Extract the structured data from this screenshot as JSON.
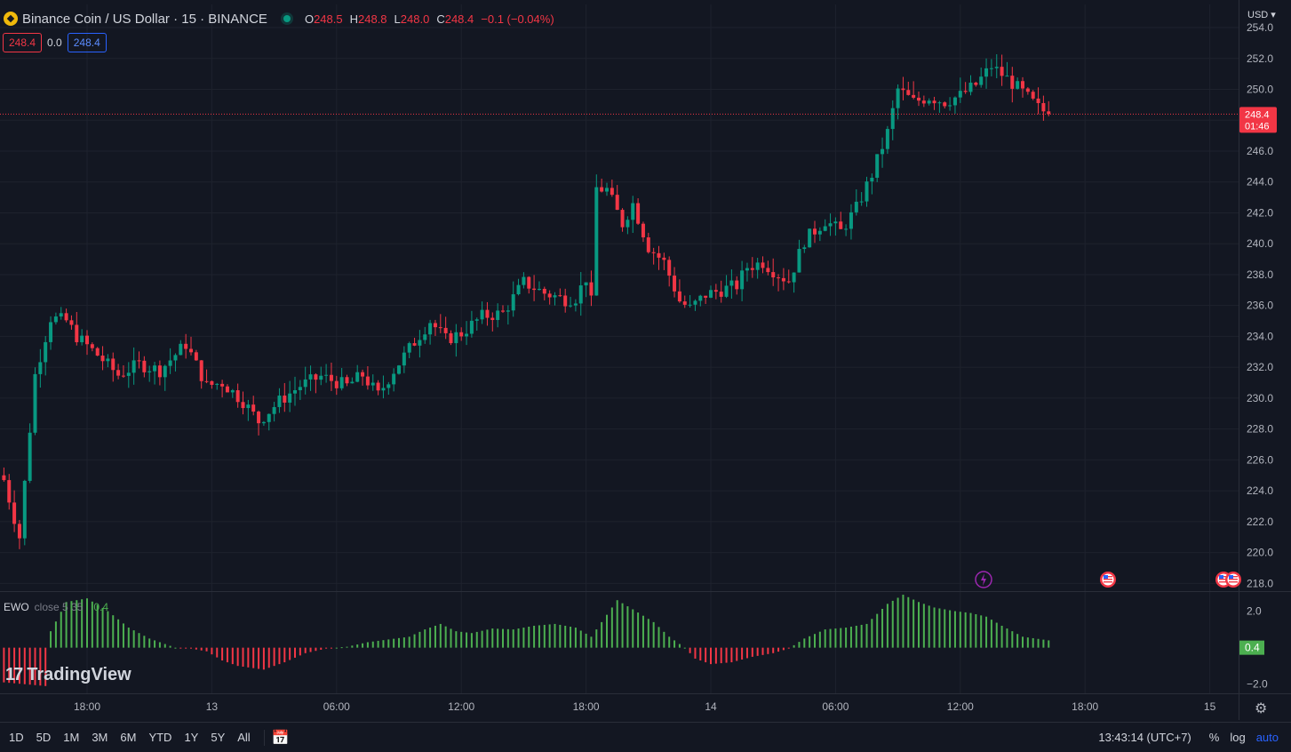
{
  "header": {
    "symbol_title": "Binance Coin / US Dollar · 15 · BINANCE",
    "ohlc": [
      {
        "k": "O",
        "v": "248.5"
      },
      {
        "k": "H",
        "v": "248.8"
      },
      {
        "k": "L",
        "v": "248.0"
      },
      {
        "k": "C",
        "v": "248.4"
      }
    ],
    "change": "−0.1 (−0.04%)",
    "bid_price": "248.4",
    "spread": "0.0",
    "ask_price": "248.4"
  },
  "currency_label": "USD",
  "chart_data": [
    {
      "type": "candlestick",
      "title": "Binance Coin / US Dollar · 15 · BINANCE",
      "ylim": [
        217.5,
        255.5
      ],
      "y_ticks": [
        254,
        252,
        250,
        248,
        246,
        244,
        242,
        240,
        238,
        236,
        234,
        232,
        230,
        228,
        226,
        224,
        222,
        220,
        218
      ],
      "y_tick_labels": [
        "254.0",
        "252.0",
        "250.0",
        "248.0",
        "246.0",
        "244.0",
        "242.0",
        "240.0",
        "238.0",
        "236.0",
        "234.0",
        "232.0",
        "230.0",
        "228.0",
        "226.0",
        "224.0",
        "222.0",
        "220.0",
        "218.0"
      ],
      "x_ticks": [
        "18:00",
        "13",
        "06:00",
        "12:00",
        "18:00",
        "14",
        "06:00",
        "12:00",
        "18:00",
        "15"
      ],
      "x_tick_index": [
        16,
        40,
        64,
        88,
        112,
        136,
        160,
        184,
        208,
        232
      ],
      "last_price": 248.4,
      "last_price_label": "248.4",
      "countdown_label": "01:46",
      "anchor_closes": [
        [
          0,
          224.7
        ],
        [
          3,
          221.0
        ],
        [
          6,
          231.5
        ],
        [
          9,
          235.2
        ],
        [
          12,
          235.0
        ],
        [
          14,
          234.0
        ],
        [
          18,
          232.8
        ],
        [
          22,
          231.5
        ],
        [
          26,
          232.2
        ],
        [
          30,
          231.8
        ],
        [
          35,
          233.5
        ],
        [
          39,
          230.8
        ],
        [
          42,
          231.0
        ],
        [
          46,
          229.8
        ],
        [
          49,
          228.5
        ],
        [
          53,
          229.8
        ],
        [
          57,
          230.8
        ],
        [
          61,
          231.4
        ],
        [
          66,
          230.8
        ],
        [
          69,
          231.5
        ],
        [
          72,
          230.2
        ],
        [
          75,
          231.8
        ],
        [
          78,
          233.2
        ],
        [
          82,
          235.0
        ],
        [
          85,
          233.8
        ],
        [
          88,
          234.2
        ],
        [
          92,
          235.3
        ],
        [
          96,
          235.5
        ],
        [
          100,
          237.5
        ],
        [
          104,
          236.8
        ],
        [
          108,
          236.4
        ],
        [
          110,
          236.5
        ],
        [
          112,
          237.8
        ],
        [
          113,
          236.2
        ],
        [
          114,
          243.6
        ],
        [
          116,
          243.5
        ],
        [
          119,
          241.3
        ],
        [
          121,
          242.6
        ],
        [
          124,
          239.8
        ],
        [
          127,
          238.8
        ],
        [
          130,
          236.3
        ],
        [
          132,
          235.8
        ],
        [
          135,
          236.7
        ],
        [
          138,
          237.0
        ],
        [
          141,
          237.3
        ],
        [
          143,
          238.5
        ],
        [
          146,
          238.8
        ],
        [
          149,
          238.0
        ],
        [
          151,
          237.6
        ],
        [
          154,
          240.2
        ],
        [
          158,
          241.5
        ],
        [
          161,
          240.8
        ],
        [
          164,
          242.3
        ],
        [
          167,
          244.5
        ],
        [
          170,
          247.2
        ],
        [
          172,
          250.0
        ],
        [
          175,
          249.2
        ],
        [
          178,
          249.5
        ],
        [
          181,
          249.2
        ],
        [
          184,
          249.6
        ],
        [
          187,
          250.3
        ],
        [
          190,
          251.5
        ],
        [
          193,
          250.7
        ],
        [
          196,
          249.8
        ],
        [
          199,
          248.8
        ],
        [
          201,
          248.4
        ]
      ]
    },
    {
      "type": "bar",
      "title": "EWO",
      "args": "close 5 35",
      "current_value_label": "0.4",
      "ylim": [
        -2.5,
        3.0
      ],
      "y_ticks": [
        2.0,
        0.0,
        -2.0
      ],
      "y_tick_labels": [
        "2.0",
        "",
        "−2.0"
      ],
      "anchor_values": [
        [
          0,
          -1.9
        ],
        [
          8,
          -2.1
        ],
        [
          9,
          0.9
        ],
        [
          12,
          2.5
        ],
        [
          16,
          2.7
        ],
        [
          20,
          2.0
        ],
        [
          24,
          1.1
        ],
        [
          28,
          0.5
        ],
        [
          31,
          0.2
        ],
        [
          33,
          0.0
        ],
        [
          36,
          -0.05
        ],
        [
          39,
          -0.2
        ],
        [
          42,
          -0.7
        ],
        [
          45,
          -1.0
        ],
        [
          50,
          -1.2
        ],
        [
          54,
          -0.8
        ],
        [
          58,
          -0.3
        ],
        [
          62,
          -0.05
        ],
        [
          66,
          0.05
        ],
        [
          70,
          0.3
        ],
        [
          74,
          0.45
        ],
        [
          78,
          0.6
        ],
        [
          81,
          1.0
        ],
        [
          84,
          1.3
        ],
        [
          87,
          0.9
        ],
        [
          90,
          0.8
        ],
        [
          94,
          1.05
        ],
        [
          98,
          1.0
        ],
        [
          102,
          1.2
        ],
        [
          106,
          1.3
        ],
        [
          110,
          1.1
        ],
        [
          113,
          0.6
        ],
        [
          115,
          1.4
        ],
        [
          118,
          2.6
        ],
        [
          121,
          2.1
        ],
        [
          125,
          1.4
        ],
        [
          128,
          0.6
        ],
        [
          131,
          0.0
        ],
        [
          133,
          -0.6
        ],
        [
          136,
          -0.9
        ],
        [
          140,
          -0.8
        ],
        [
          144,
          -0.5
        ],
        [
          148,
          -0.3
        ],
        [
          151,
          -0.05
        ],
        [
          154,
          0.5
        ],
        [
          158,
          1.0
        ],
        [
          162,
          1.1
        ],
        [
          166,
          1.3
        ],
        [
          170,
          2.4
        ],
        [
          173,
          2.9
        ],
        [
          176,
          2.5
        ],
        [
          179,
          2.2
        ],
        [
          183,
          2.0
        ],
        [
          186,
          1.9
        ],
        [
          189,
          1.7
        ],
        [
          192,
          1.2
        ],
        [
          196,
          0.6
        ],
        [
          201,
          0.4
        ]
      ]
    }
  ],
  "ewo_legend": {
    "name": "EWO",
    "args": "close 5 35",
    "value": "0.4"
  },
  "watermark": "TradingView",
  "colors": {
    "bg": "#131722",
    "up": "#089981",
    "down": "#f23645",
    "ewo_up": "#4caf50",
    "ewo_down": "#f23645",
    "accent": "#2962ff"
  },
  "event_markers": [
    "lightning-icon",
    "us-flag-icon",
    "us-flag-icon",
    "us-flag-icon"
  ],
  "range_buttons": [
    "1D",
    "5D",
    "1M",
    "3M",
    "6M",
    "YTD",
    "1Y",
    "5Y",
    "All"
  ],
  "clock": "13:43:14 (UTC+7)",
  "tools": {
    "percent": "%",
    "log": "log",
    "auto": "auto"
  }
}
